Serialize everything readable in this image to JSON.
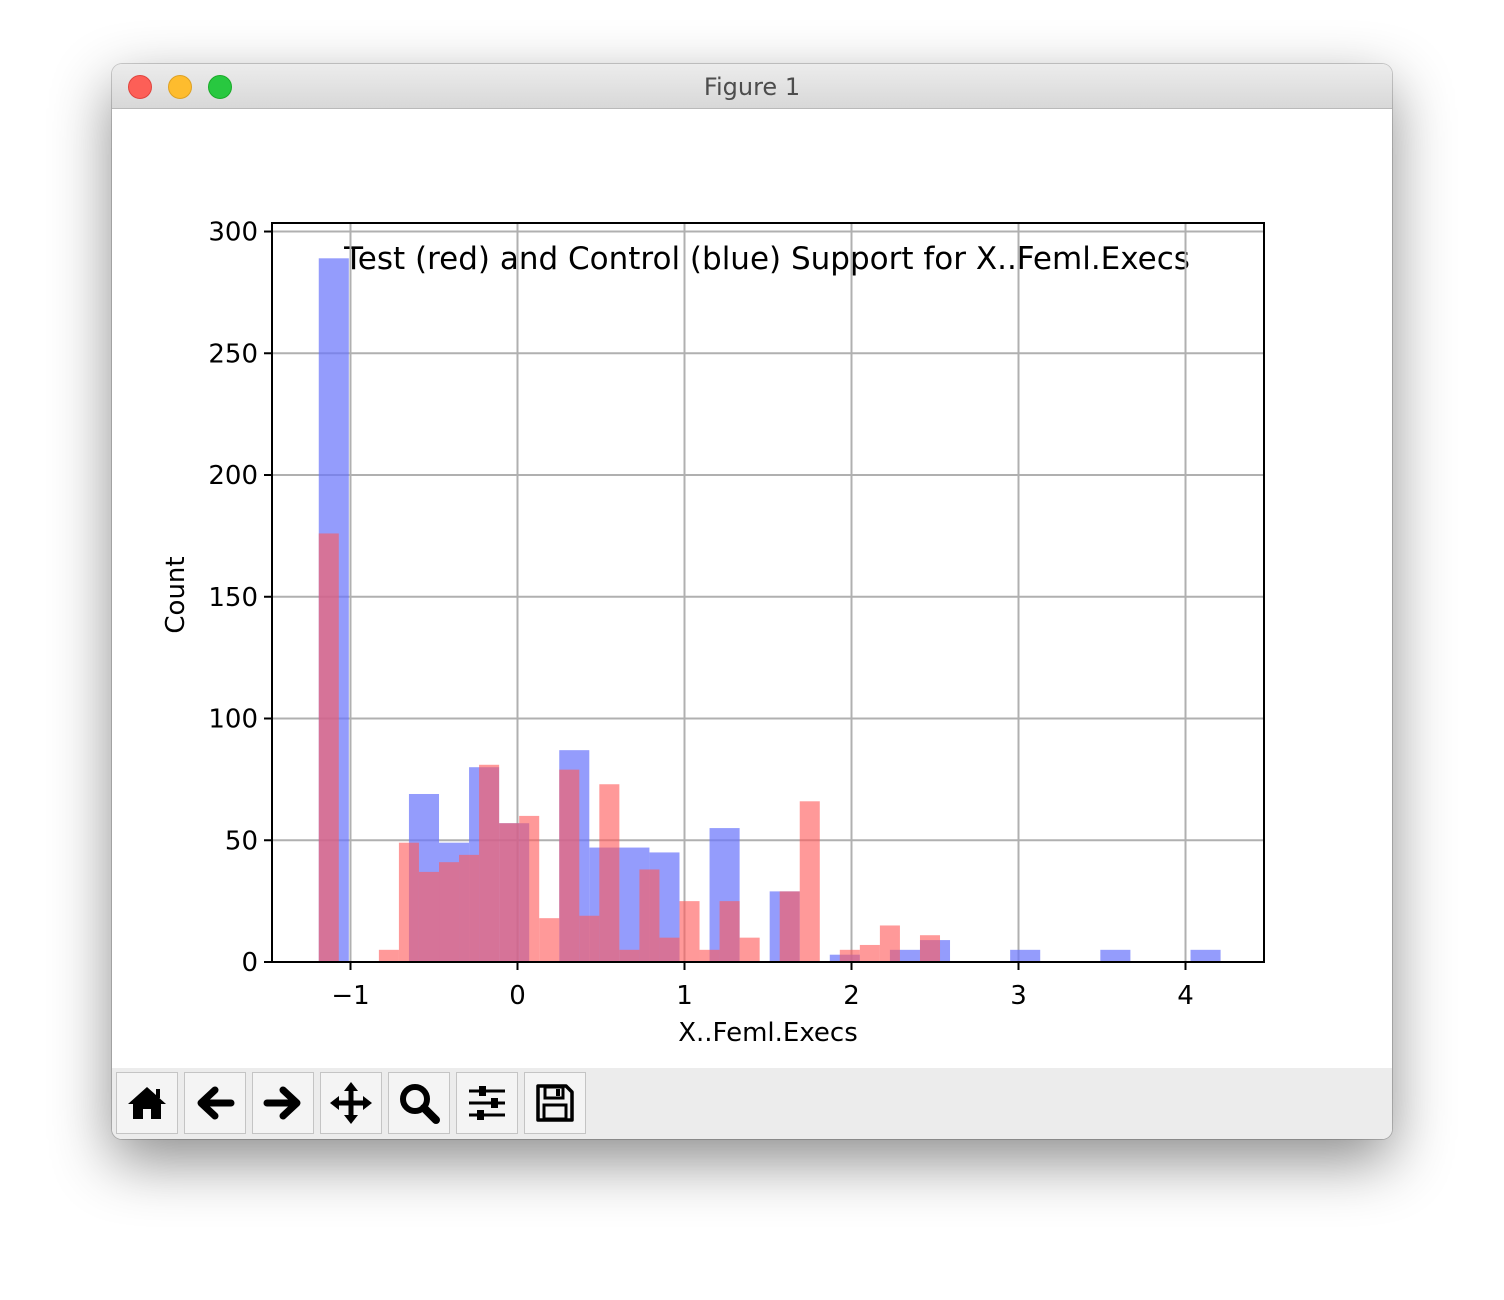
{
  "window": {
    "title": "Figure 1"
  },
  "toolbar": {
    "buttons": [
      {
        "name": "home-button",
        "icon": "home-icon"
      },
      {
        "name": "back-button",
        "icon": "arrow-left-icon"
      },
      {
        "name": "forward-button",
        "icon": "arrow-right-icon"
      },
      {
        "name": "pan-button",
        "icon": "move-icon"
      },
      {
        "name": "zoom-button",
        "icon": "magnifier-icon"
      },
      {
        "name": "configure-subplots-button",
        "icon": "sliders-icon"
      },
      {
        "name": "save-button",
        "icon": "floppy-disk-icon"
      }
    ]
  },
  "chart_data": {
    "type": "bar",
    "title": "Test (red) and Control (blue) Support for X..Feml.Execs",
    "xlabel": "X..Feml.Execs",
    "ylabel": "Count",
    "xlim": [
      -1.47,
      4.47
    ],
    "ylim": [
      0,
      303.5
    ],
    "xticks": [
      -1,
      0,
      1,
      2,
      3,
      4
    ],
    "xtick_labels": [
      "−1",
      "0",
      "1",
      "2",
      "3",
      "4"
    ],
    "yticks": [
      0,
      50,
      100,
      150,
      200,
      250,
      300
    ],
    "ytick_labels": [
      "0",
      "50",
      "100",
      "150",
      "200",
      "250",
      "300"
    ],
    "grid": true,
    "series": [
      {
        "color": "#6b76fb",
        "opacity": 0.72,
        "bins": [
          [
            -1.19,
            -1.01,
            289
          ],
          [
            -0.65,
            -0.47,
            69
          ],
          [
            -0.47,
            -0.29,
            49
          ],
          [
            -0.29,
            -0.11,
            80
          ],
          [
            -0.11,
            0.07,
            57
          ],
          [
            0.25,
            0.43,
            87
          ],
          [
            0.43,
            0.61,
            47
          ],
          [
            0.61,
            0.79,
            47
          ],
          [
            0.79,
            0.97,
            45
          ],
          [
            1.15,
            1.33,
            55
          ],
          [
            1.51,
            1.69,
            29
          ],
          [
            1.87,
            2.05,
            3
          ],
          [
            2.23,
            2.41,
            5
          ],
          [
            2.41,
            2.59,
            9
          ],
          [
            2.95,
            3.13,
            5
          ],
          [
            3.49,
            3.67,
            5
          ],
          [
            4.03,
            4.21,
            5
          ]
        ]
      },
      {
        "color": "#ff5a5a",
        "opacity": 0.62,
        "bins": [
          [
            -1.19,
            -1.07,
            176
          ],
          [
            -0.83,
            -0.71,
            5
          ],
          [
            -0.71,
            -0.59,
            49
          ],
          [
            -0.59,
            -0.47,
            37
          ],
          [
            -0.47,
            -0.35,
            41
          ],
          [
            -0.35,
            -0.23,
            44
          ],
          [
            -0.23,
            -0.11,
            81
          ],
          [
            -0.11,
            0.01,
            57
          ],
          [
            0.01,
            0.13,
            60
          ],
          [
            0.13,
            0.25,
            18
          ],
          [
            0.25,
            0.37,
            79
          ],
          [
            0.37,
            0.49,
            19
          ],
          [
            0.49,
            0.61,
            73
          ],
          [
            0.61,
            0.73,
            5
          ],
          [
            0.73,
            0.85,
            38
          ],
          [
            0.85,
            0.97,
            10
          ],
          [
            0.97,
            1.09,
            25
          ],
          [
            1.09,
            1.21,
            5
          ],
          [
            1.21,
            1.33,
            25
          ],
          [
            1.33,
            1.45,
            10
          ],
          [
            1.57,
            1.69,
            29
          ],
          [
            1.69,
            1.81,
            66
          ],
          [
            1.81,
            1.93,
            0
          ],
          [
            1.93,
            2.05,
            5
          ],
          [
            2.05,
            2.17,
            7
          ],
          [
            2.17,
            2.29,
            15
          ],
          [
            2.29,
            2.41,
            0
          ],
          [
            2.41,
            2.53,
            11
          ]
        ]
      }
    ]
  }
}
